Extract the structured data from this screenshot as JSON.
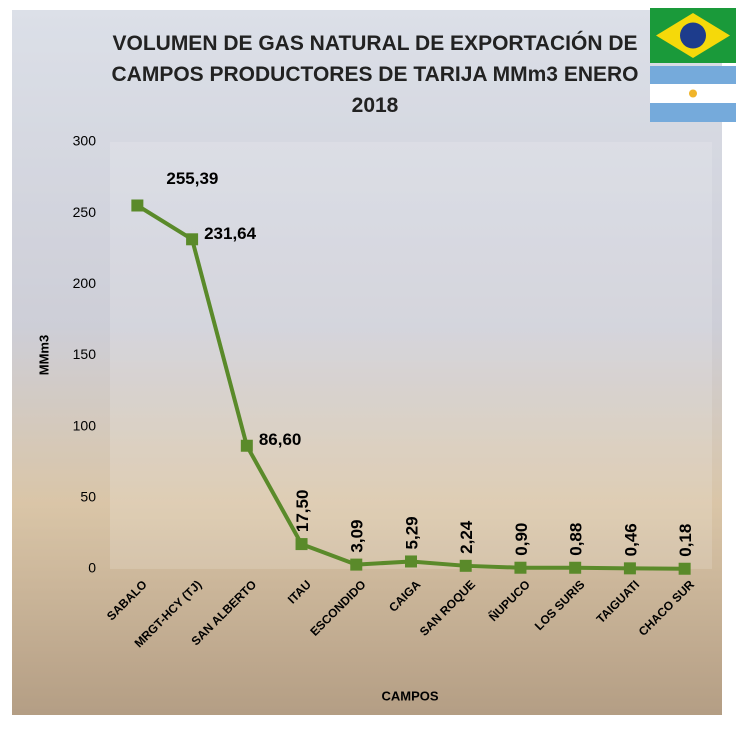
{
  "chart_data": {
    "type": "line",
    "title": "VOLUMEN DE GAS NATURAL DE EXPORTACIÓN DE CAMPOS PRODUCTORES DE TARIJA MMm3 ENERO 2018",
    "x_label": "CAMPOS",
    "y_label": "MMm3",
    "categories": [
      "SABALO",
      "MRGT-HCY (TJ)",
      "SAN ALBERTO",
      "ITAU",
      "ESCONDIDO",
      "CAIGA",
      "SAN ROQUE",
      "ÑUPUCO",
      "LOS SURIS",
      "TAIGUATI",
      "CHACO SUR"
    ],
    "values": [
      255.39,
      231.64,
      86.6,
      17.5,
      3.09,
      5.29,
      2.24,
      0.9,
      0.88,
      0.46,
      0.18
    ],
    "value_labels": [
      "255,39",
      "231,64",
      "86,60",
      "17,50",
      "3,09",
      "5,29",
      "2,24",
      "0,90",
      "0,88",
      "0,46",
      "0,18"
    ],
    "color": "#5a8a2a",
    "ylim": [
      0,
      300
    ],
    "yticks": [
      0,
      50,
      100,
      150,
      200,
      250,
      300
    ],
    "grid": false
  }
}
